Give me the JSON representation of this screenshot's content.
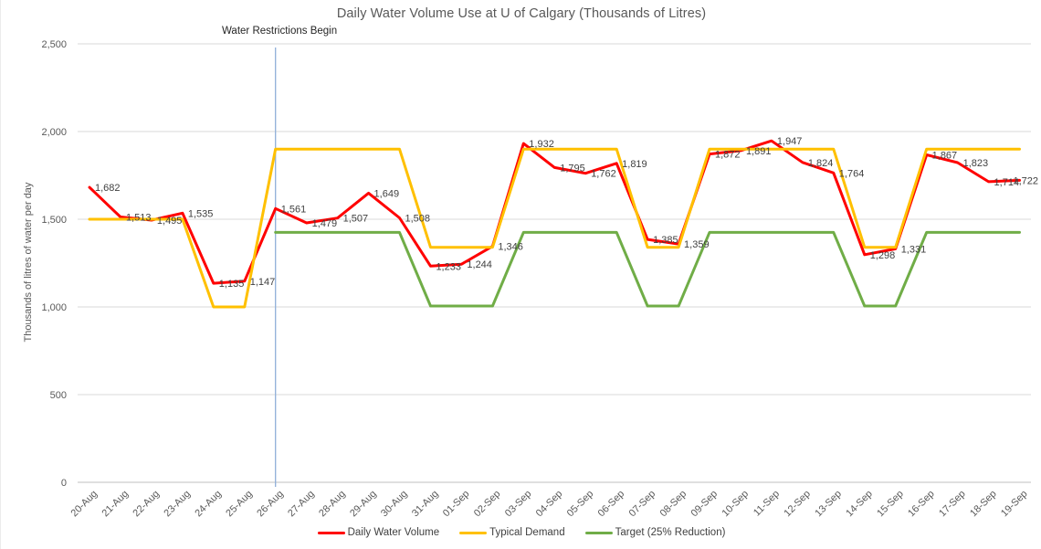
{
  "title": "Daily Water Volume Use at U of Calgary (Thousands of Litres)",
  "chart_data": {
    "type": "line",
    "title": "Daily Water Volume Use at U of Calgary (Thousands of Litres)",
    "ylabel": "Thousands of litres of water per day",
    "xlabel": "",
    "ylim": [
      0,
      2500
    ],
    "grid": true,
    "legend_position": "bottom",
    "y_axis": {
      "tick_values": [
        0,
        500,
        1000,
        1500,
        2000,
        2500
      ],
      "tick_labels": [
        "0",
        "500",
        "1,000",
        "1,500",
        "2,000",
        "2,500"
      ]
    },
    "categories": [
      "20-Aug",
      "21-Aug",
      "22-Aug",
      "23-Aug",
      "24-Aug",
      "25-Aug",
      "26-Aug",
      "27-Aug",
      "28-Aug",
      "29-Aug",
      "30-Aug",
      "31-Aug",
      "01-Sep",
      "02-Sep",
      "03-Sep",
      "04-Sep",
      "05-Sep",
      "06-Sep",
      "07-Sep",
      "08-Sep",
      "09-Sep",
      "10-Sep",
      "11-Sep",
      "12-Sep",
      "13-Sep",
      "14-Sep",
      "15-Sep",
      "16-Sep",
      "17-Sep",
      "18-Sep",
      "19-Sep"
    ],
    "series": [
      {
        "name": "Daily Water Volume",
        "color": "#FF0000",
        "values": [
          1682,
          1513,
          1495,
          1535,
          1135,
          1147,
          1561,
          1479,
          1507,
          1649,
          1508,
          1233,
          1244,
          1346,
          1932,
          1795,
          1762,
          1819,
          1385,
          1359,
          1872,
          1891,
          1947,
          1824,
          1764,
          1298,
          1331,
          1867,
          1823,
          1714,
          1722
        ],
        "data_labels": [
          "1,682",
          "1,513",
          "1,495",
          "1,535",
          "1,135",
          "1,147",
          "1,561",
          "1,479",
          "1,507",
          "1,649",
          "1,508",
          "1,233",
          "1,244",
          "1,346",
          "1,932",
          "1,795",
          "1,762",
          "1,819",
          "1,385",
          "1,359",
          "1,872",
          "1,891",
          "1,947",
          "1,824",
          "1,764",
          "1,298",
          "1,331",
          "1,867",
          "1,823",
          "1,714",
          "1,722"
        ]
      },
      {
        "name": "Typical Demand",
        "color": "#FFC000",
        "values": [
          1500,
          1500,
          1500,
          1500,
          1000,
          1000,
          1900,
          1900,
          1900,
          1900,
          1900,
          1340,
          1340,
          1340,
          1900,
          1900,
          1900,
          1900,
          1340,
          1340,
          1900,
          1900,
          1900,
          1900,
          1900,
          1340,
          1340,
          1900,
          1900,
          1900,
          1900
        ],
        "data_labels": null
      },
      {
        "name": "Target (25% Reduction)",
        "color": "#70AD47",
        "values": [
          null,
          null,
          null,
          null,
          null,
          null,
          1425,
          1425,
          1425,
          1425,
          1425,
          1005,
          1005,
          1005,
          1425,
          1425,
          1425,
          1425,
          1005,
          1005,
          1425,
          1425,
          1425,
          1425,
          1425,
          1005,
          1005,
          1425,
          1425,
          1425,
          1425
        ],
        "data_labels": null
      }
    ],
    "annotation": {
      "text": "Water Restrictions Begin",
      "x_category": "26-Aug",
      "line_color": "#8FAFD9"
    },
    "colors": {
      "gridline": "#D9D9D9",
      "axis_line": "#BFBFBF",
      "tick_text": "#595959",
      "data_label_text": "#404040",
      "title_text": "#595959"
    }
  }
}
